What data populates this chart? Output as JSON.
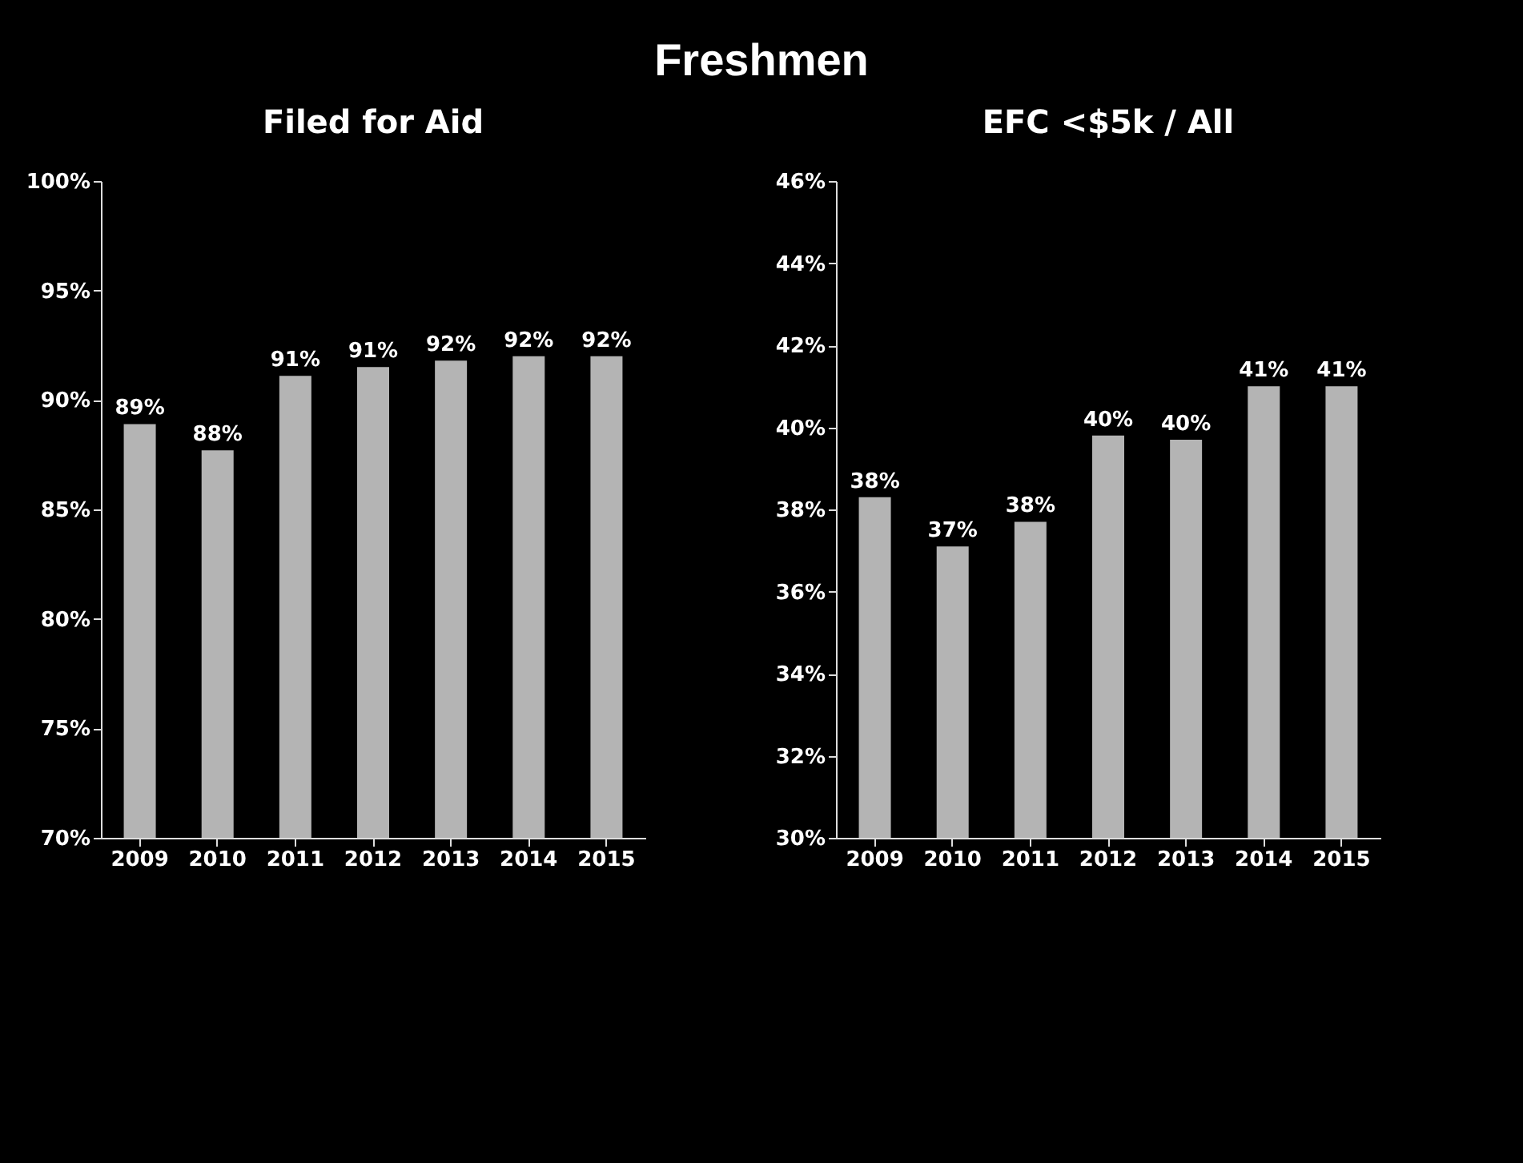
{
  "chart_data": [
    {
      "type": "bar",
      "title": "Filed for Aid",
      "annotations": [
        "Freshmen"
      ],
      "categories": [
        "2009",
        "2010",
        "2011",
        "2012",
        "2013",
        "2014",
        "2015"
      ],
      "values": [
        88.9,
        87.7,
        91.1,
        91.5,
        91.8,
        92.0,
        92.0
      ],
      "value_labels": [
        "89%",
        "88%",
        "91%",
        "91%",
        "92%",
        "92%",
        "92%"
      ],
      "color": "#b4b4b4",
      "ylim": [
        70,
        100
      ],
      "yticks": [
        {
          "value": 70,
          "label": "70%"
        },
        {
          "value": 75,
          "label": "75%"
        },
        {
          "value": 80,
          "label": "80%"
        },
        {
          "value": 85,
          "label": "85%"
        },
        {
          "value": 90,
          "label": "90%"
        },
        {
          "value": 95,
          "label": "95%"
        },
        {
          "value": 100,
          "label": "100%"
        }
      ],
      "grid": false
    },
    {
      "type": "bar",
      "title": "EFC <$5k / All",
      "categories": [
        "2009",
        "2010",
        "2011",
        "2012",
        "2013",
        "2014",
        "2015"
      ],
      "values": [
        38.3,
        37.1,
        37.7,
        39.8,
        39.7,
        41.0,
        41.0
      ],
      "value_labels": [
        "38%",
        "37%",
        "38%",
        "40%",
        "40%",
        "41%",
        "41%"
      ],
      "color": "#b4b4b4",
      "ylim": [
        30,
        46
      ],
      "yticks": [
        {
          "value": 30,
          "label": "30%"
        },
        {
          "value": 32,
          "label": "32%"
        },
        {
          "value": 34,
          "label": "34%"
        },
        {
          "value": 36,
          "label": "36%"
        },
        {
          "value": 38,
          "label": "38%"
        },
        {
          "value": 40,
          "label": "40%"
        },
        {
          "value": 42,
          "label": "42%"
        },
        {
          "value": 44,
          "label": "44%"
        },
        {
          "value": 46,
          "label": "46%"
        }
      ],
      "grid": false
    }
  ]
}
